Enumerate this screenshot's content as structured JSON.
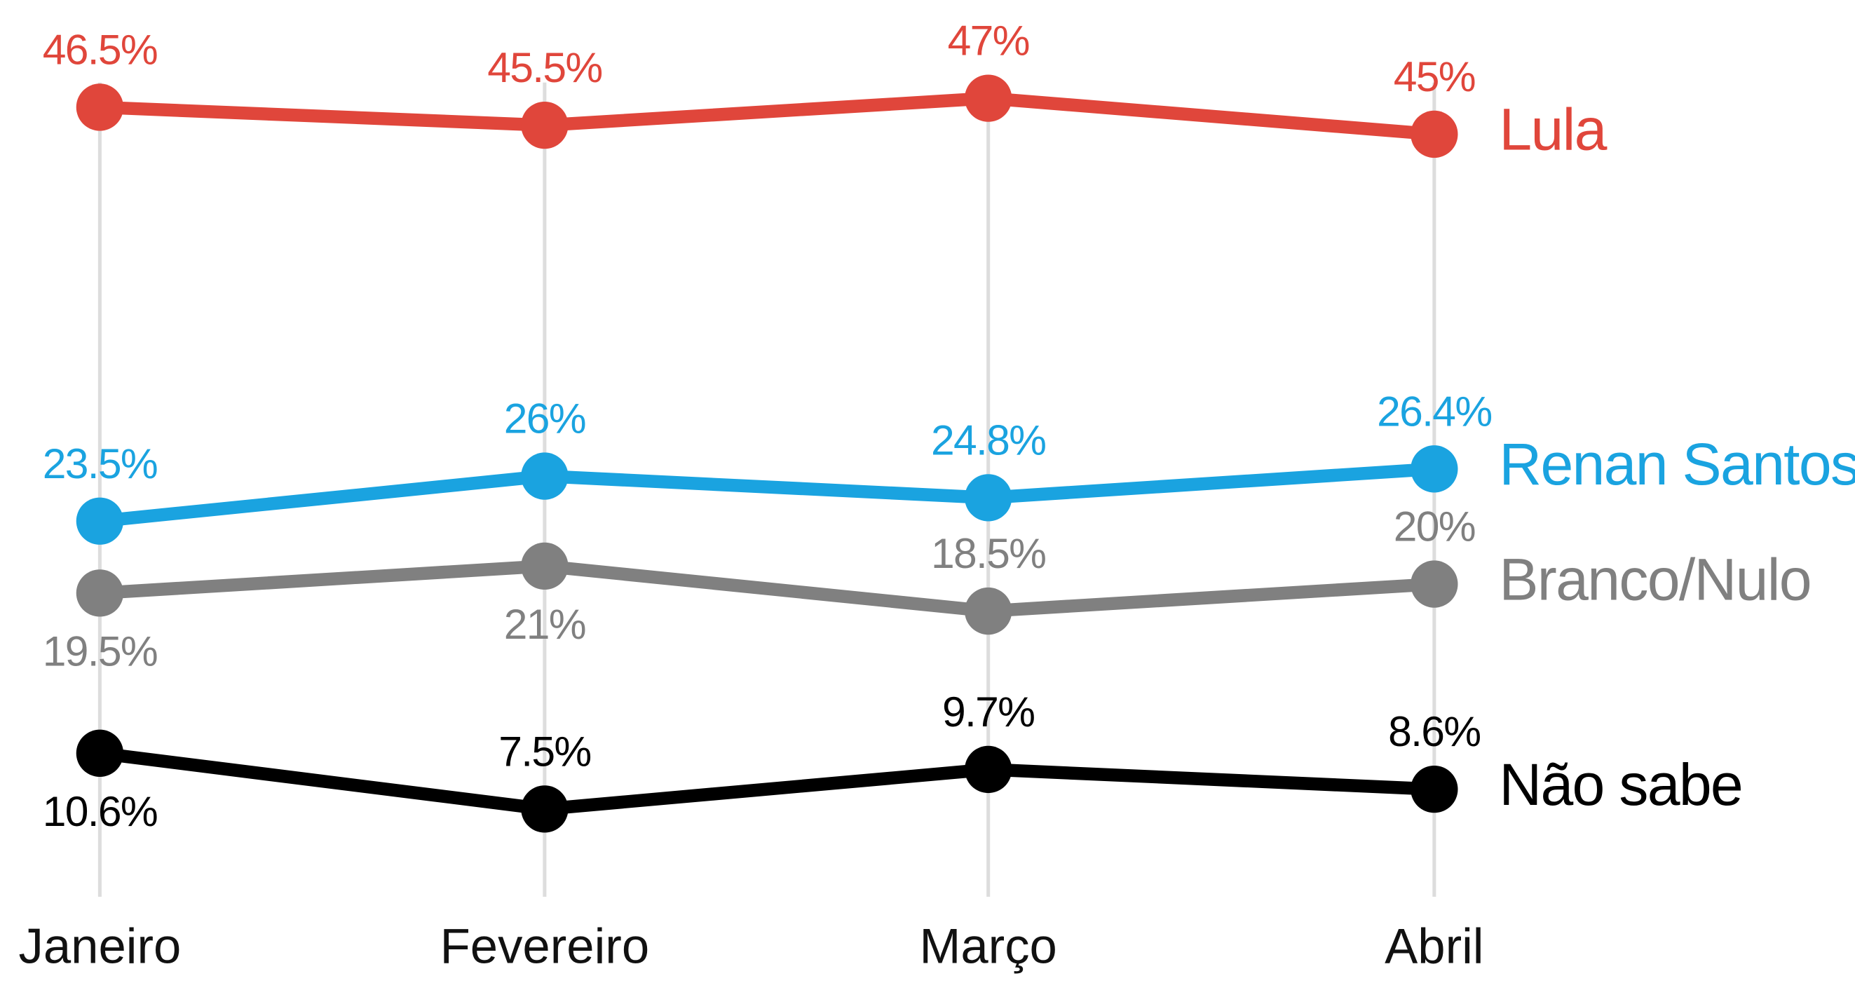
{
  "chart_data": {
    "type": "line",
    "categories": [
      "Janeiro",
      "Fevereiro",
      "Março",
      "Abril"
    ],
    "series": [
      {
        "name": "Lula",
        "color": "#e0463b",
        "values": [
          46.5,
          45.5,
          47,
          45
        ],
        "value_labels": [
          "46.5%",
          "45.5%",
          "47%",
          "45%"
        ]
      },
      {
        "name": "Renan Santos",
        "color": "#1aa3e0",
        "values": [
          23.5,
          26,
          24.8,
          26.4
        ],
        "value_labels": [
          "23.5%",
          "26%",
          "24.8%",
          "26.4%"
        ]
      },
      {
        "name": "Branco/Nulo",
        "color": "#808080",
        "values": [
          19.5,
          21,
          18.5,
          20
        ],
        "value_labels": [
          "19.5%",
          "21%",
          "18.5%",
          "20%"
        ]
      },
      {
        "name": "Não sabe",
        "color": "#000000",
        "values": [
          10.6,
          7.5,
          9.7,
          8.6
        ],
        "value_labels": [
          "10.6%",
          "7.5%",
          "9.7%",
          "8.6%"
        ]
      }
    ],
    "grid": true
  }
}
